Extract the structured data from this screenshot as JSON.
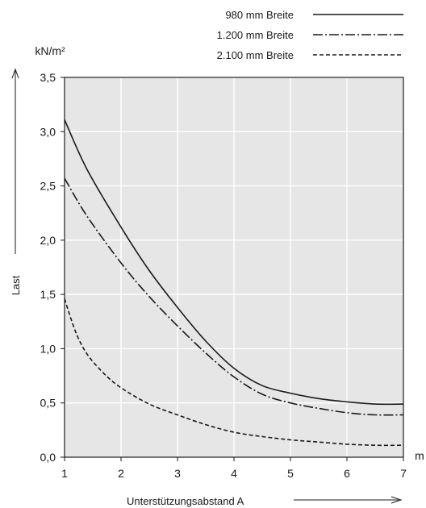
{
  "chart_data": {
    "type": "line",
    "ylabel": "Last",
    "yunit": "kN/m²",
    "xlabel": "Unterstützungsabstand A",
    "xunit": "m",
    "xlim": [
      1,
      7
    ],
    "ylim": [
      0,
      3.5
    ],
    "xticks": [
      "1",
      "2",
      "3",
      "4",
      "5",
      "6",
      "7"
    ],
    "yticks": [
      "0,0",
      "0,5",
      "1,0",
      "1,5",
      "2,0",
      "2,5",
      "3,0",
      "3,5"
    ],
    "grid": true,
    "legend_position": "top-right",
    "colors": {
      "plot_background": "#e6e6e6",
      "grid": "#ffffff",
      "line": "#1a1a1a"
    },
    "series": [
      {
        "name": "980 mm Breite",
        "dash": "solid",
        "x": [
          1.0,
          1.4,
          2.0,
          2.5,
          3.0,
          3.5,
          4.0,
          4.5,
          5.0,
          5.5,
          6.0,
          6.5,
          7.0
        ],
        "y": [
          3.11,
          2.65,
          2.12,
          1.72,
          1.38,
          1.07,
          0.82,
          0.66,
          0.59,
          0.54,
          0.51,
          0.49,
          0.49
        ]
      },
      {
        "name": "1.200 mm Breite",
        "dash": "dashdot",
        "x": [
          1.0,
          1.4,
          2.0,
          2.5,
          3.0,
          3.5,
          4.0,
          4.5,
          5.0,
          5.5,
          6.0,
          6.5,
          7.0
        ],
        "y": [
          2.57,
          2.22,
          1.79,
          1.48,
          1.21,
          0.96,
          0.74,
          0.58,
          0.5,
          0.45,
          0.41,
          0.39,
          0.39
        ]
      },
      {
        "name": "2.100 mm Breite",
        "dash": "dashed",
        "x": [
          1.0,
          1.2,
          1.4,
          1.7,
          2.0,
          2.5,
          3.0,
          3.5,
          4.0,
          4.5,
          5.0,
          5.5,
          6.0,
          6.5,
          7.0
        ],
        "y": [
          1.46,
          1.15,
          0.95,
          0.77,
          0.64,
          0.49,
          0.39,
          0.3,
          0.23,
          0.19,
          0.16,
          0.14,
          0.12,
          0.11,
          0.11
        ]
      }
    ]
  }
}
